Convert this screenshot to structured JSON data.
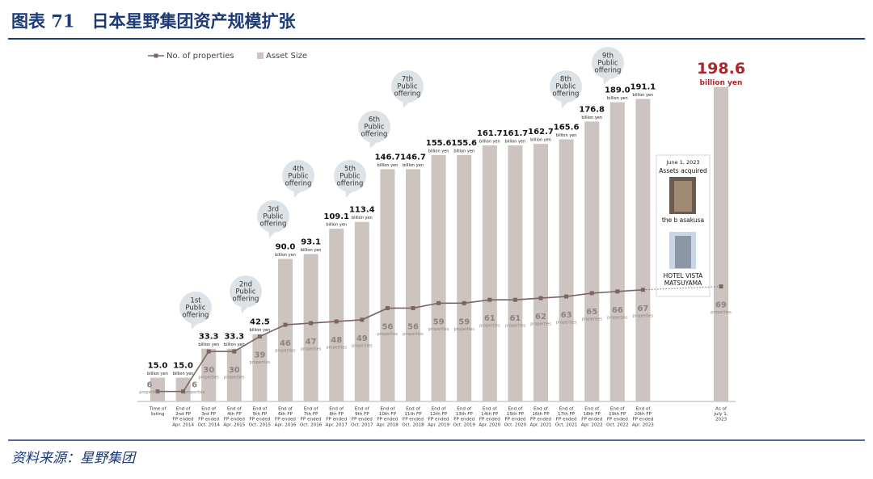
{
  "chart_data": {
    "type": "bar",
    "title": "图表 71　日本星野集团资产规模扩张",
    "source": "资料来源：星野集团",
    "categories": [
      [
        "Time of",
        "listing"
      ],
      [
        "End of",
        "2nd FP",
        "FP ended",
        "Apr. 2014"
      ],
      [
        "End of",
        "3rd FP",
        "FP ended",
        "Oct. 2014"
      ],
      [
        "End of",
        "4th FP",
        "FP ended",
        "Apr. 2015"
      ],
      [
        "End of",
        "5th FP",
        "FP ended",
        "Oct. 2015"
      ],
      [
        "End of",
        "6th FP",
        "FP ended",
        "Apr. 2016"
      ],
      [
        "End of",
        "7th FP",
        "FP ended",
        "Oct. 2016"
      ],
      [
        "End of",
        "8th FP",
        "FP ended",
        "Apr. 2017"
      ],
      [
        "End of",
        "9th FP",
        "FP ended",
        "Oct. 2017"
      ],
      [
        "End of",
        "10th FP",
        "FP ended",
        "Apr. 2018"
      ],
      [
        "End of",
        "11th FP",
        "FP ended",
        "Oct. 2018"
      ],
      [
        "End of",
        "12th FP",
        "FP ended",
        "Apr. 2019"
      ],
      [
        "End of",
        "13th FP",
        "FP ended",
        "Oct. 2019"
      ],
      [
        "End of",
        "14th FP",
        "FP ended",
        "Apr. 2020"
      ],
      [
        "End of",
        "15th FP",
        "FP ended",
        "Oct. 2020"
      ],
      [
        "End of",
        "16th FP",
        "FP ended",
        "Apr. 2021"
      ],
      [
        "End of",
        "17th FP",
        "FP ended",
        "Oct. 2021"
      ],
      [
        "End of",
        "18th FP",
        "FP ended",
        "Apr. 2022"
      ],
      [
        "End of",
        "19th FP",
        "FP ended",
        "Oct. 2022"
      ],
      [
        "End of",
        "20th FP",
        "FP ended",
        "Apr. 2023"
      ],
      [
        "As of",
        "July 1,",
        "2023"
      ]
    ],
    "ylim": [
      0,
      200
    ],
    "y2lim": [
      0,
      190
    ],
    "series": [
      {
        "name": "Asset Size",
        "type": "bar",
        "color": "#cdc3c1",
        "unit_label": "billion yen",
        "values": [
          15.0,
          15.0,
          33.3,
          33.3,
          42.5,
          90.0,
          93.1,
          109.1,
          113.4,
          146.7,
          146.7,
          155.6,
          155.6,
          161.7,
          161.7,
          162.7,
          165.6,
          176.8,
          189.0,
          191.1,
          198.6
        ],
        "value_labels": [
          "15.0",
          "15.0",
          "33.3",
          "33.3",
          "42.5",
          "90.0",
          "93.1",
          "109.1",
          "113.4",
          "146.7",
          "146.7",
          "155.6",
          "155.6",
          "161.7",
          "161.7",
          "162.7",
          "165.6",
          "176.8",
          "189.0",
          "191.1",
          "198.6"
        ],
        "highlight_color": "#a8282c"
      },
      {
        "name": "No. of properties",
        "type": "line",
        "axis": "y2",
        "color": "#7a6464",
        "unit_label": "properties",
        "values": [
          6,
          6,
          30,
          30,
          39,
          46,
          47,
          48,
          49,
          56,
          56,
          59,
          59,
          61,
          61,
          62,
          63,
          65,
          66,
          67,
          69
        ]
      }
    ],
    "annotations": [
      [
        "1st",
        "Public",
        "offering"
      ],
      [
        "2nd",
        "Public",
        "offering"
      ],
      [
        "3rd",
        "Public",
        "offering"
      ],
      [
        "4th",
        "Public",
        "offering"
      ],
      [
        "5th",
        "Public",
        "offering"
      ],
      [
        "6th",
        "Public",
        "offering"
      ],
      [
        "7th",
        "Public",
        "offering"
      ],
      [
        "8th",
        "Public",
        "offering"
      ],
      [
        "9th",
        "Public",
        "offering"
      ]
    ],
    "callout": {
      "heading": [
        "June 1, 2023",
        "Assets acquired"
      ],
      "items": [
        [
          "the b asakusa"
        ],
        [
          "HOTEL VISTA",
          "MATSUYAMA"
        ]
      ]
    }
  }
}
